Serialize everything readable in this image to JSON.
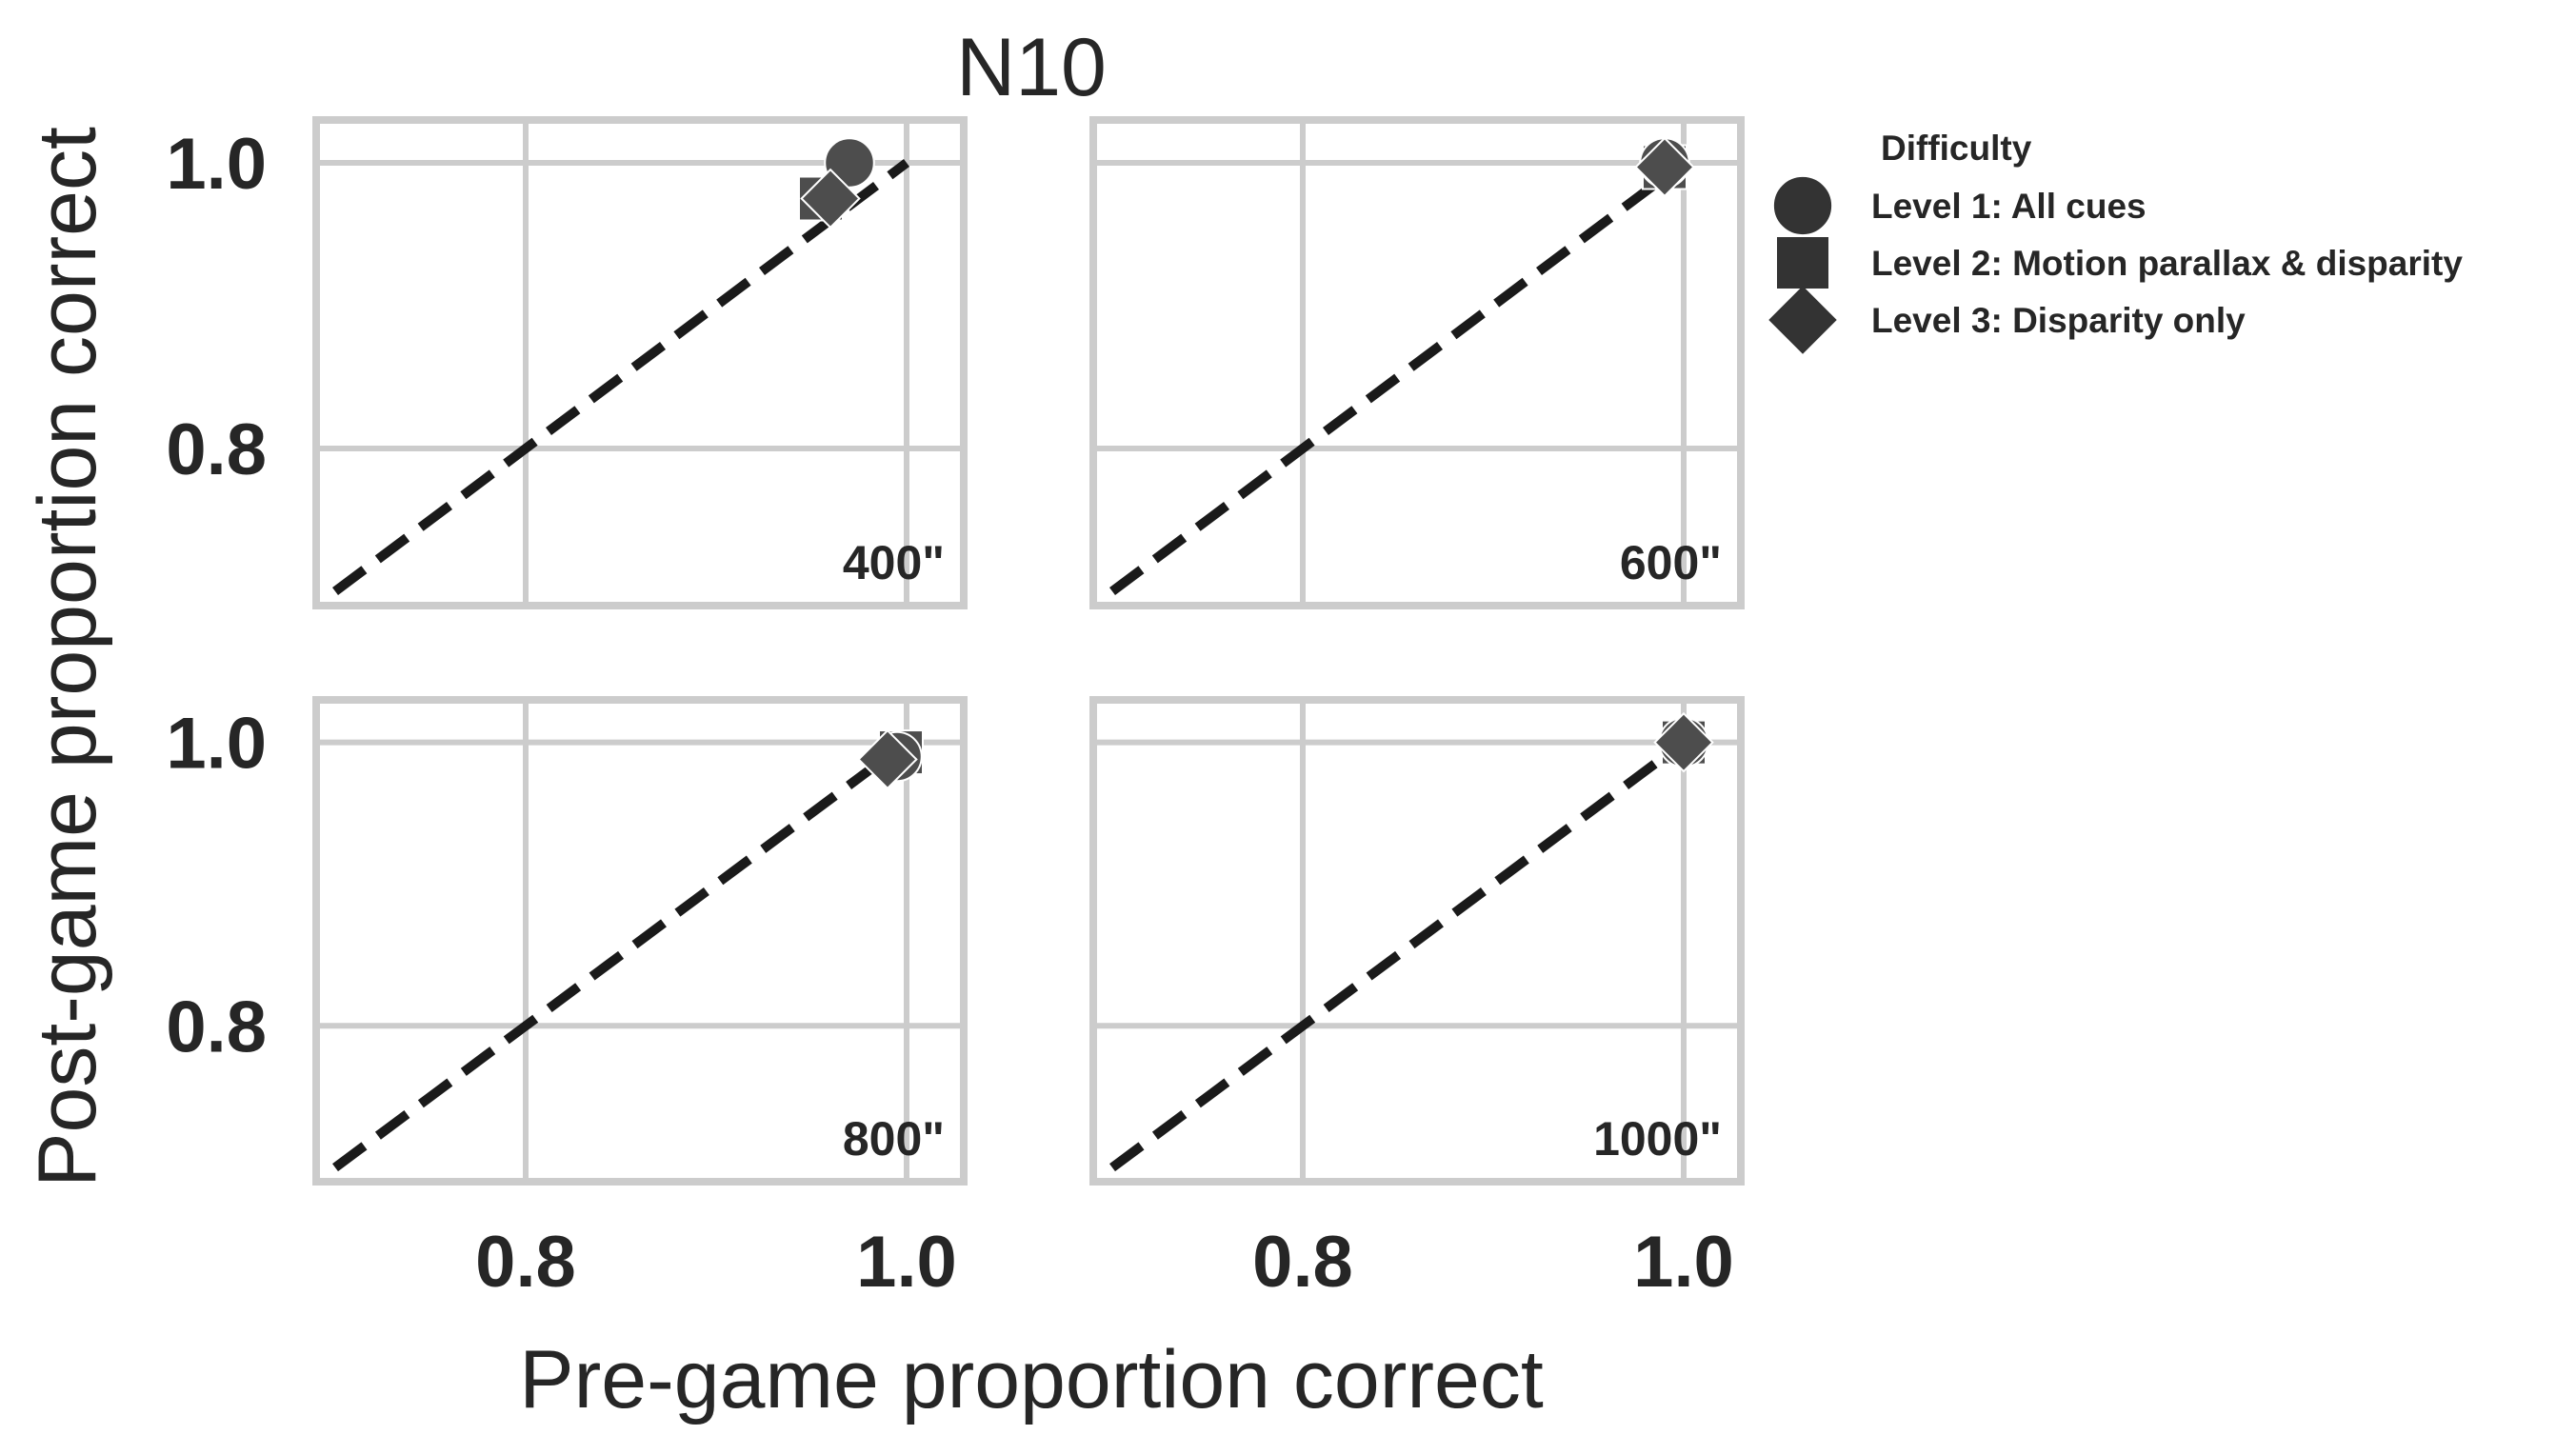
{
  "figure": {
    "title": "N10",
    "xlabel": "Pre-game proportion correct",
    "ylabel": "Post-game proportion correct"
  },
  "legend": {
    "title": "Difficulty",
    "placement": "right",
    "items": [
      {
        "label": "Level 1: All cues",
        "marker": "circle"
      },
      {
        "label": "Level 2: Motion parallax & disparity",
        "marker": "square"
      },
      {
        "label": "Level 3: Disparity only",
        "marker": "diamond"
      }
    ]
  },
  "colors": {
    "grid": "#cccccc",
    "frame": "#cccccc",
    "marker": "#4d4d4d",
    "marker_edge": "#ffffff",
    "identity_line": "#1a1a1a",
    "text": "#262626"
  },
  "chart_data": [
    {
      "type": "scatter",
      "panel_label": "400\"",
      "xlim": [
        0.69,
        1.03
      ],
      "ylim": [
        0.69,
        1.03
      ],
      "xticks": [
        "0.8",
        "1.0"
      ],
      "yticks": [
        "0.8",
        "1.0"
      ],
      "grid": true,
      "identity_line": [
        [
          0.7,
          0.7
        ],
        [
          1.0,
          1.0
        ]
      ],
      "series": [
        {
          "name": "Level 1: All cues",
          "marker": "circle",
          "points": [
            [
              0.97,
              1.0
            ]
          ]
        },
        {
          "name": "Level 2: Motion parallax & disparity",
          "marker": "square",
          "points": [
            [
              0.955,
              0.975
            ]
          ]
        },
        {
          "name": "Level 3: Disparity only",
          "marker": "diamond",
          "points": [
            [
              0.96,
              0.975
            ]
          ]
        }
      ]
    },
    {
      "type": "scatter",
      "panel_label": "600\"",
      "xlim": [
        0.69,
        1.03
      ],
      "ylim": [
        0.69,
        1.03
      ],
      "xticks": [
        "0.8",
        "1.0"
      ],
      "yticks": [
        "0.8",
        "1.0"
      ],
      "grid": true,
      "identity_line": [
        [
          0.7,
          0.7
        ],
        [
          1.0,
          1.0
        ]
      ],
      "series": [
        {
          "name": "Level 1: All cues",
          "marker": "circle",
          "points": [
            [
              0.99,
              1.0
            ]
          ]
        },
        {
          "name": "Level 2: Motion parallax & disparity",
          "marker": "square",
          "points": [
            [
              0.99,
              0.997
            ]
          ]
        },
        {
          "name": "Level 3: Disparity only",
          "marker": "diamond",
          "points": [
            [
              0.99,
              0.997
            ]
          ]
        }
      ]
    },
    {
      "type": "scatter",
      "panel_label": "800\"",
      "xlim": [
        0.69,
        1.03
      ],
      "ylim": [
        0.69,
        1.03
      ],
      "xticks": [
        "0.8",
        "1.0"
      ],
      "yticks": [
        "0.8",
        "1.0"
      ],
      "grid": true,
      "identity_line": [
        [
          0.7,
          0.7
        ],
        [
          1.0,
          1.0
        ]
      ],
      "series": [
        {
          "name": "Level 1: All cues",
          "marker": "circle",
          "points": [
            [
              0.995,
              0.99
            ]
          ]
        },
        {
          "name": "Level 2: Motion parallax & disparity",
          "marker": "square",
          "points": [
            [
              0.997,
              0.993
            ]
          ]
        },
        {
          "name": "Level 3: Disparity only",
          "marker": "diamond",
          "points": [
            [
              0.99,
              0.988
            ]
          ]
        }
      ]
    },
    {
      "type": "scatter",
      "panel_label": "1000\"",
      "xlim": [
        0.69,
        1.03
      ],
      "ylim": [
        0.69,
        1.03
      ],
      "xticks": [
        "0.8",
        "1.0"
      ],
      "yticks": [
        "0.8",
        "1.0"
      ],
      "grid": true,
      "identity_line": [
        [
          0.7,
          0.7
        ],
        [
          1.0,
          1.0
        ]
      ],
      "series": [
        {
          "name": "Level 1: All cues",
          "marker": "circle",
          "points": [
            [
              1.0,
              1.0
            ]
          ]
        },
        {
          "name": "Level 2: Motion parallax & disparity",
          "marker": "square",
          "points": [
            [
              1.0,
              1.0
            ]
          ]
        },
        {
          "name": "Level 3: Disparity only",
          "marker": "diamond",
          "points": [
            [
              1.0,
              1.0
            ]
          ]
        }
      ]
    }
  ]
}
